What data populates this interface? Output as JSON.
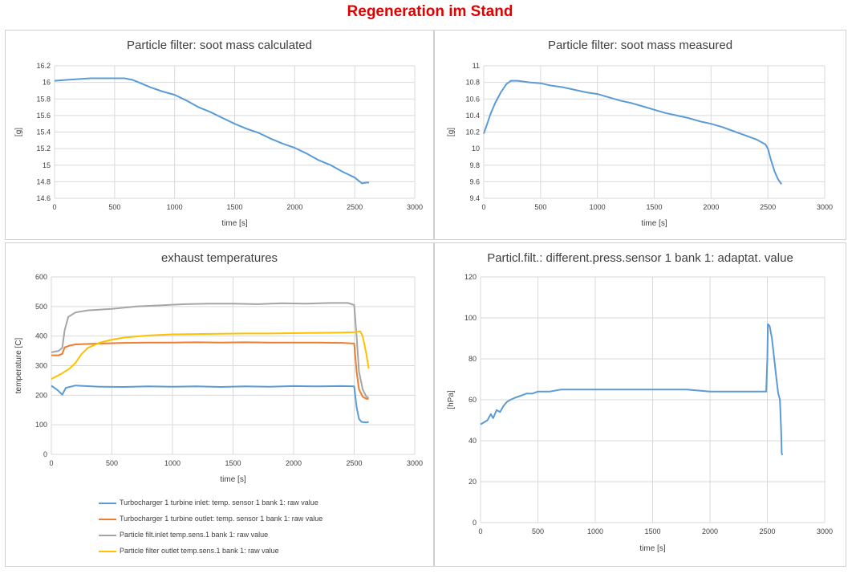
{
  "page_title": "Regeneration im Stand",
  "chart_data": [
    {
      "id": "soot-calc",
      "type": "line",
      "title": "Particle filter: soot mass calculated",
      "xlabel": "time [s]",
      "ylabel": "[g]",
      "xlim": [
        0,
        3000
      ],
      "ylim": [
        14.6,
        16.2
      ],
      "xticks": [
        0,
        500,
        1000,
        1500,
        2000,
        2500,
        3000
      ],
      "yticks": [
        14.6,
        14.8,
        15,
        15.2,
        15.4,
        15.6,
        15.8,
        16,
        16.2
      ],
      "grid": "both",
      "series": [
        {
          "color": "#5b9bd5",
          "points": [
            [
              0,
              16.02
            ],
            [
              100,
              16.03
            ],
            [
              200,
              16.04
            ],
            [
              300,
              16.05
            ],
            [
              400,
              16.05
            ],
            [
              500,
              16.05
            ],
            [
              580,
              16.05
            ],
            [
              650,
              16.03
            ],
            [
              700,
              16.0
            ],
            [
              800,
              15.94
            ],
            [
              900,
              15.89
            ],
            [
              1000,
              15.85
            ],
            [
              1100,
              15.78
            ],
            [
              1200,
              15.7
            ],
            [
              1300,
              15.64
            ],
            [
              1400,
              15.57
            ],
            [
              1500,
              15.5
            ],
            [
              1600,
              15.44
            ],
            [
              1700,
              15.39
            ],
            [
              1800,
              15.32
            ],
            [
              1900,
              15.26
            ],
            [
              2000,
              15.21
            ],
            [
              2100,
              15.14
            ],
            [
              2200,
              15.06
            ],
            [
              2300,
              15.0
            ],
            [
              2400,
              14.92
            ],
            [
              2500,
              14.85
            ],
            [
              2560,
              14.78
            ],
            [
              2600,
              14.79
            ],
            [
              2620,
              14.79
            ]
          ]
        }
      ]
    },
    {
      "id": "soot-meas",
      "type": "line",
      "title": "Particle filter: soot mass measured",
      "xlabel": "time [s]",
      "ylabel": "[g]",
      "xlim": [
        0,
        3000
      ],
      "ylim": [
        9.4,
        11
      ],
      "xticks": [
        0,
        500,
        1000,
        1500,
        2000,
        2500,
        3000
      ],
      "yticks": [
        9.4,
        9.6,
        9.8,
        10,
        10.2,
        10.4,
        10.6,
        10.8,
        11
      ],
      "grid": "both",
      "series": [
        {
          "color": "#5b9bd5",
          "points": [
            [
              0,
              10.18
            ],
            [
              30,
              10.3
            ],
            [
              60,
              10.42
            ],
            [
              100,
              10.55
            ],
            [
              150,
              10.68
            ],
            [
              200,
              10.78
            ],
            [
              240,
              10.82
            ],
            [
              300,
              10.82
            ],
            [
              400,
              10.8
            ],
            [
              500,
              10.79
            ],
            [
              600,
              10.76
            ],
            [
              700,
              10.74
            ],
            [
              800,
              10.71
            ],
            [
              900,
              10.68
            ],
            [
              1000,
              10.66
            ],
            [
              1100,
              10.62
            ],
            [
              1200,
              10.58
            ],
            [
              1300,
              10.55
            ],
            [
              1400,
              10.51
            ],
            [
              1500,
              10.47
            ],
            [
              1600,
              10.43
            ],
            [
              1700,
              10.4
            ],
            [
              1800,
              10.37
            ],
            [
              1900,
              10.33
            ],
            [
              2000,
              10.3
            ],
            [
              2100,
              10.26
            ],
            [
              2200,
              10.21
            ],
            [
              2300,
              10.16
            ],
            [
              2400,
              10.11
            ],
            [
              2480,
              10.05
            ],
            [
              2500,
              10.0
            ],
            [
              2530,
              9.85
            ],
            [
              2560,
              9.72
            ],
            [
              2590,
              9.63
            ],
            [
              2620,
              9.57
            ]
          ]
        }
      ]
    },
    {
      "id": "exhaust",
      "type": "line",
      "title": "exhaust temperatures",
      "xlabel": "time [s]",
      "ylabel": "temperature [C]",
      "xlim": [
        0,
        3000
      ],
      "ylim": [
        0,
        600
      ],
      "xticks": [
        0,
        500,
        1000,
        1500,
        2000,
        2500,
        3000
      ],
      "yticks": [
        0,
        100,
        200,
        300,
        400,
        500,
        600
      ],
      "grid": "both",
      "legend": "bottom",
      "series": [
        {
          "name": "Turbocharger 1 turbine inlet: temp. sensor 1 bank 1: raw value",
          "color": "#5b9bd5",
          "points": [
            [
              0,
              232
            ],
            [
              50,
              218
            ],
            [
              90,
              202
            ],
            [
              120,
              225
            ],
            [
              200,
              233
            ],
            [
              400,
              229
            ],
            [
              600,
              228
            ],
            [
              800,
              230
            ],
            [
              1000,
              229
            ],
            [
              1200,
              230
            ],
            [
              1400,
              228
            ],
            [
              1600,
              230
            ],
            [
              1800,
              229
            ],
            [
              2000,
              231
            ],
            [
              2200,
              230
            ],
            [
              2400,
              231
            ],
            [
              2500,
              230
            ],
            [
              2520,
              160
            ],
            [
              2540,
              120
            ],
            [
              2560,
              110
            ],
            [
              2600,
              108
            ],
            [
              2620,
              110
            ]
          ]
        },
        {
          "name": "Turbocharger 1 turbine outlet: temp. sensor 1 bank 1: raw value",
          "color": "#ed7d31",
          "points": [
            [
              0,
              335
            ],
            [
              60,
              335
            ],
            [
              90,
              340
            ],
            [
              110,
              362
            ],
            [
              150,
              368
            ],
            [
              200,
              372
            ],
            [
              400,
              375
            ],
            [
              600,
              377
            ],
            [
              800,
              378
            ],
            [
              1000,
              378
            ],
            [
              1200,
              379
            ],
            [
              1400,
              378
            ],
            [
              1600,
              379
            ],
            [
              1800,
              378
            ],
            [
              2000,
              378
            ],
            [
              2200,
              378
            ],
            [
              2400,
              377
            ],
            [
              2500,
              375
            ],
            [
              2520,
              280
            ],
            [
              2540,
              220
            ],
            [
              2570,
              195
            ],
            [
              2600,
              188
            ],
            [
              2620,
              188
            ]
          ]
        },
        {
          "name": "Particle filt.inlet temp.sens.1 bank 1: raw value",
          "color": "#a5a5a5",
          "points": [
            [
              0,
              345
            ],
            [
              60,
              350
            ],
            [
              90,
              360
            ],
            [
              110,
              420
            ],
            [
              140,
              465
            ],
            [
              200,
              480
            ],
            [
              300,
              487
            ],
            [
              500,
              492
            ],
            [
              700,
              500
            ],
            [
              900,
              504
            ],
            [
              1100,
              508
            ],
            [
              1300,
              510
            ],
            [
              1500,
              510
            ],
            [
              1700,
              508
            ],
            [
              1900,
              511
            ],
            [
              2100,
              510
            ],
            [
              2300,
              512
            ],
            [
              2450,
              512
            ],
            [
              2500,
              505
            ],
            [
              2520,
              400
            ],
            [
              2540,
              280
            ],
            [
              2570,
              220
            ],
            [
              2600,
              195
            ],
            [
              2620,
              192
            ]
          ]
        },
        {
          "name": "Particle filter outlet temp.sens.1 bank 1: raw value",
          "color": "#ffc000",
          "points": [
            [
              0,
              255
            ],
            [
              80,
              272
            ],
            [
              150,
              290
            ],
            [
              200,
              310
            ],
            [
              250,
              340
            ],
            [
              300,
              360
            ],
            [
              400,
              378
            ],
            [
              500,
              388
            ],
            [
              600,
              395
            ],
            [
              800,
              402
            ],
            [
              1000,
              406
            ],
            [
              1200,
              407
            ],
            [
              1400,
              408
            ],
            [
              1600,
              409
            ],
            [
              1800,
              409
            ],
            [
              2000,
              410
            ],
            [
              2200,
              411
            ],
            [
              2400,
              412
            ],
            [
              2500,
              413
            ],
            [
              2550,
              416
            ],
            [
              2570,
              400
            ],
            [
              2600,
              340
            ],
            [
              2620,
              290
            ]
          ]
        }
      ]
    },
    {
      "id": "diffpress",
      "type": "line",
      "title": "Particl.filt.: different.press.sensor 1 bank 1: adaptat. value",
      "xlabel": "time [s]",
      "ylabel": "[hPa]",
      "xlim": [
        0,
        3000
      ],
      "ylim": [
        0,
        120
      ],
      "xticks": [
        0,
        500,
        1000,
        1500,
        2000,
        2500,
        3000
      ],
      "yticks": [
        0,
        20,
        40,
        60,
        80,
        100,
        120
      ],
      "grid": "both",
      "series": [
        {
          "color": "#5b9bd5",
          "points": [
            [
              0,
              48
            ],
            [
              30,
              49
            ],
            [
              60,
              50
            ],
            [
              90,
              53
            ],
            [
              110,
              51
            ],
            [
              140,
              55
            ],
            [
              170,
              54
            ],
            [
              200,
              57
            ],
            [
              230,
              59
            ],
            [
              260,
              60
            ],
            [
              300,
              61
            ],
            [
              350,
              62
            ],
            [
              400,
              63
            ],
            [
              450,
              63
            ],
            [
              500,
              64
            ],
            [
              600,
              64
            ],
            [
              700,
              65
            ],
            [
              800,
              65
            ],
            [
              1000,
              65
            ],
            [
              1200,
              65
            ],
            [
              1400,
              65
            ],
            [
              1600,
              65
            ],
            [
              1800,
              65
            ],
            [
              2000,
              64
            ],
            [
              2200,
              64
            ],
            [
              2400,
              64
            ],
            [
              2490,
              64
            ],
            [
              2500,
              80
            ],
            [
              2505,
              97
            ],
            [
              2520,
              96
            ],
            [
              2540,
              90
            ],
            [
              2560,
              80
            ],
            [
              2580,
              70
            ],
            [
              2595,
              63
            ],
            [
              2610,
              60
            ],
            [
              2620,
              45
            ],
            [
              2625,
              34
            ],
            [
              2630,
              33
            ]
          ]
        }
      ]
    }
  ]
}
